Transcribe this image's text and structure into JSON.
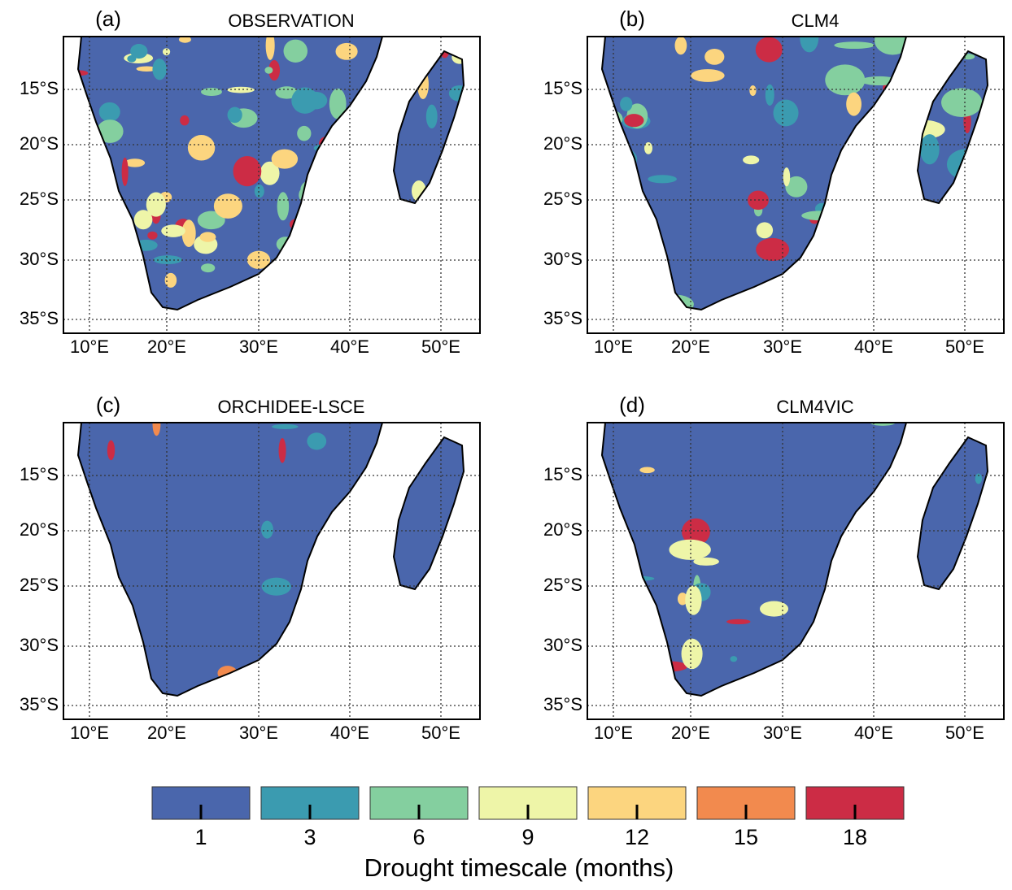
{
  "panels": [
    {
      "label": "(a)",
      "title": "OBSERVATION",
      "lat_ticks": [
        "15°S",
        "20°S",
        "25°S",
        "30°S",
        "35°S"
      ],
      "lon_ticks": [
        "10°E",
        "20°E",
        "30°E",
        "40°E",
        "50°E"
      ]
    },
    {
      "label": "(b)",
      "title": "CLM4",
      "lat_ticks": [
        "15°S",
        "20°S",
        "25°S",
        "30°S",
        "35°S"
      ],
      "lon_ticks": [
        "10°E",
        "20°E",
        "30°E",
        "40°E",
        "50°E"
      ]
    },
    {
      "label": "(c)",
      "title": "ORCHIDEE-LSCE",
      "lat_ticks": [
        "15°S",
        "20°S",
        "25°S",
        "30°S",
        "35°S"
      ],
      "lon_ticks": [
        "10°E",
        "20°E",
        "30°E",
        "40°E",
        "50°E"
      ]
    },
    {
      "label": "(d)",
      "title": "CLM4VIC",
      "lat_ticks": [
        "15°S",
        "20°S",
        "25°S",
        "30°S",
        "35°S"
      ],
      "lon_ticks": [
        "10°E",
        "20°E",
        "30°E",
        "40°E",
        "50°E"
      ]
    }
  ],
  "legend": {
    "items": [
      {
        "label": 1,
        "color": "#4a66ac"
      },
      {
        "label": 3,
        "color": "#3b9bb0"
      },
      {
        "label": 6,
        "color": "#84cf9f"
      },
      {
        "label": 9,
        "color": "#eef5a8"
      },
      {
        "label": 12,
        "color": "#fcd57f"
      },
      {
        "label": 15,
        "color": "#f28a4e"
      },
      {
        "label": 18,
        "color": "#cc2c45"
      }
    ],
    "title": "Drought timescale (months)"
  }
}
